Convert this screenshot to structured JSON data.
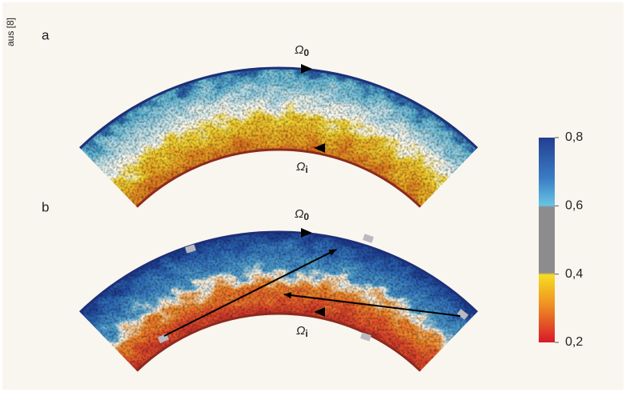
{
  "source": "aus [8]",
  "panels": [
    {
      "label": "a",
      "omega_outer": {
        "symbol": "Ω",
        "subscript": "0"
      },
      "omega_inner": {
        "symbol": "Ω",
        "subscript": "i"
      }
    },
    {
      "label": "b",
      "omega_outer": {
        "symbol": "Ω",
        "subscript": "0"
      },
      "omega_inner": {
        "symbol": "Ω",
        "subscript": "i"
      }
    }
  ],
  "colorbar": {
    "lim": [
      0.2,
      0.8
    ],
    "ticks": [
      {
        "value": 0.8,
        "label": "0,8"
      },
      {
        "value": 0.6,
        "label": "0,6"
      },
      {
        "value": 0.4,
        "label": "0,4"
      },
      {
        "value": 0.2,
        "label": "0,2"
      }
    ]
  }
}
